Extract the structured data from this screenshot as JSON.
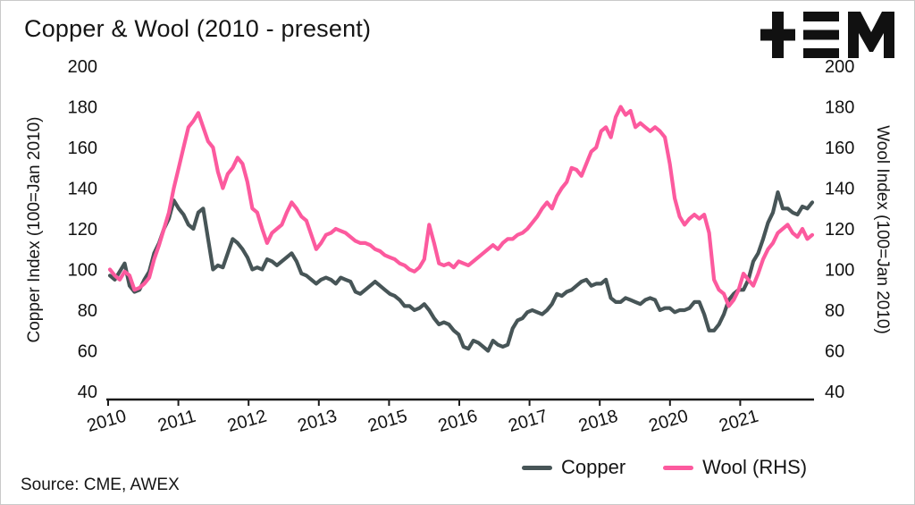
{
  "title": "Copper & Wool (2010 - present)",
  "source": "Source: CME, AWEX",
  "left_axis_label": "Copper Index (100=Jan 2010)",
  "right_axis_label": "Wool Index (100=Jan 2010)",
  "legend": [
    {
      "label": "Copper",
      "color": "#475557"
    },
    {
      "label": "Wool (RHS)",
      "color": "#fc5a9e"
    }
  ],
  "colors": {
    "copper_line": "#475557",
    "wool_line": "#fc5a9e",
    "axis": "#1a1a1a",
    "text": "#151515",
    "logo": "#111111"
  },
  "chart_data": {
    "type": "line",
    "title": "Copper & Wool (2010 - present)",
    "x_start": "2010-01",
    "x_end": "2021-12",
    "x_frequency": "monthly",
    "x_tick_labels": [
      "2010",
      "2011",
      "2012",
      "2013",
      "2015",
      "2016",
      "2017",
      "2018",
      "2020",
      "2021"
    ],
    "ylim": [
      40,
      200
    ],
    "ytick_step": 20,
    "grid": false,
    "legend_position": "bottom-right",
    "series": [
      {
        "name": "Copper",
        "axis": "left",
        "color": "#475557",
        "values": [
          97,
          95,
          99,
          103,
          92,
          89,
          90,
          95,
          99,
          108,
          113,
          120,
          125,
          134,
          130,
          127,
          122,
          120,
          128,
          130,
          115,
          100,
          102,
          101,
          108,
          115,
          113,
          110,
          106,
          100,
          101,
          100,
          105,
          104,
          102,
          104,
          106,
          108,
          104,
          98,
          97,
          95,
          93,
          95,
          96,
          95,
          93,
          96,
          95,
          94,
          89,
          88,
          90,
          92,
          94,
          92,
          90,
          88,
          87,
          85,
          82,
          82,
          80,
          81,
          83,
          80,
          76,
          73,
          74,
          73,
          70,
          68,
          62,
          61,
          65,
          64,
          62,
          60,
          65,
          63,
          62,
          63,
          71,
          75,
          76,
          79,
          80,
          79,
          78,
          80,
          83,
          88,
          87,
          89,
          90,
          92,
          94,
          95,
          92,
          93,
          93,
          95,
          86,
          84,
          84,
          86,
          85,
          84,
          83,
          85,
          86,
          85,
          80,
          81,
          81,
          79,
          80,
          80,
          81,
          84,
          84,
          78,
          70,
          70,
          73,
          78,
          85,
          88,
          90,
          90,
          95,
          104,
          108,
          115,
          123,
          128,
          138,
          130,
          130,
          128,
          127,
          131,
          130,
          133
        ]
      },
      {
        "name": "Wool (RHS)",
        "axis": "right",
        "color": "#fc5a9e",
        "values": [
          100,
          97,
          95,
          99,
          97,
          90,
          91,
          93,
          96,
          105,
          112,
          120,
          128,
          140,
          150,
          160,
          170,
          173,
          177,
          170,
          163,
          160,
          148,
          140,
          147,
          150,
          155,
          152,
          143,
          130,
          128,
          120,
          113,
          118,
          120,
          122,
          128,
          133,
          130,
          126,
          124,
          117,
          110,
          113,
          117,
          118,
          120,
          119,
          118,
          116,
          114,
          113,
          113,
          112,
          110,
          109,
          107,
          106,
          105,
          103,
          102,
          100,
          99,
          101,
          105,
          122,
          113,
          103,
          102,
          103,
          101,
          104,
          103,
          102,
          104,
          106,
          108,
          110,
          112,
          110,
          113,
          115,
          115,
          117,
          118,
          120,
          123,
          126,
          130,
          133,
          130,
          136,
          140,
          143,
          150,
          149,
          146,
          152,
          158,
          160,
          168,
          170,
          165,
          175,
          180,
          176,
          178,
          170,
          172,
          170,
          168,
          170,
          168,
          165,
          152,
          135,
          126,
          122,
          125,
          127,
          125,
          127,
          118,
          95,
          90,
          88,
          82,
          85,
          90,
          98,
          95,
          92,
          98,
          105,
          110,
          113,
          118,
          120,
          122,
          118,
          116,
          120,
          115,
          117
        ]
      }
    ]
  }
}
